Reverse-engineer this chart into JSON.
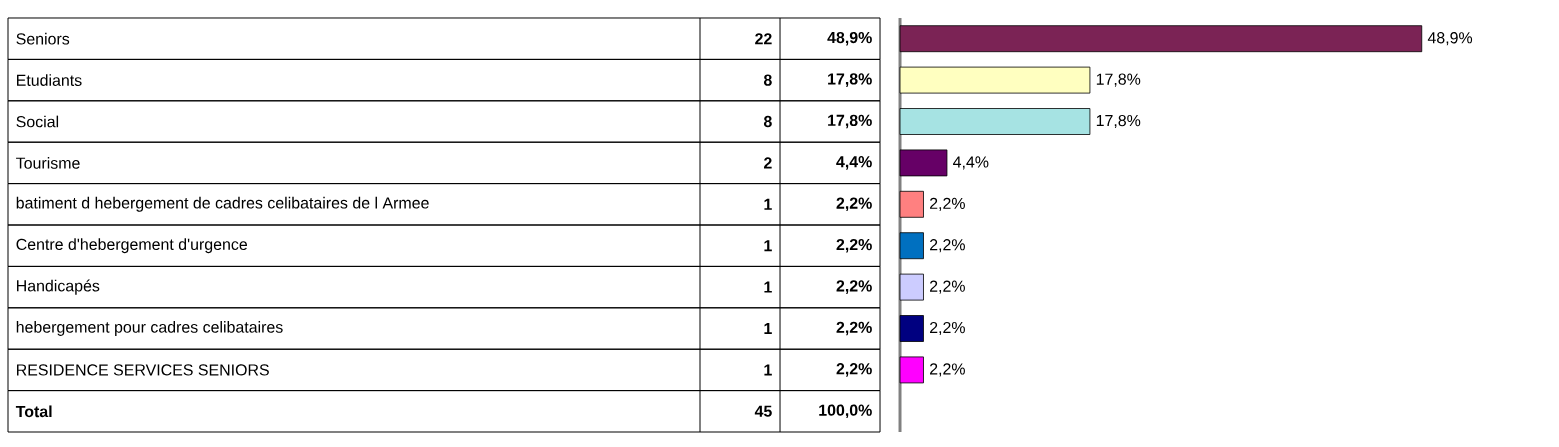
{
  "chart_data": [
    {
      "type": "other",
      "categories": [
        "Seniors",
        "Etudiants",
        "Social",
        "Tourisme",
        "batiment d hebergement de cadres celibataires de l Armee",
        "Centre d'hebergement d'urgence",
        "Handicapés",
        "hebergement pour cadres celibataires",
        "RESIDENCE SERVICES SENIORS"
      ],
      "annotations": [
        "22",
        "48,9%",
        "8",
        "17,8%",
        "8",
        "17,8%",
        "2",
        "4,4%",
        "1",
        "2,2%",
        "1",
        "2,2%",
        "1",
        "2,2%",
        "1",
        "2,2%",
        "1",
        "2,2%",
        "Total",
        "45",
        "100,0%"
      ]
    },
    {
      "type": "bar",
      "orientation": "horizontal",
      "categories": [
        null,
        null,
        null,
        null,
        null,
        null,
        null,
        null,
        null
      ],
      "values": [
        48.9,
        17.8,
        17.8,
        4.4,
        2.2,
        2.2,
        2.2,
        2.2,
        2.2
      ],
      "colors": [
        "#7b2355",
        "#ffffc0",
        "#a6e3e3",
        "#660066",
        "#ff8080",
        "#0070c0",
        "#ccccff",
        "#000080",
        "#ff00ff"
      ],
      "value_labels": [
        "48,9%",
        "17,8%",
        "17,8%",
        "4,4%",
        "2,2%",
        "2,2%",
        "2,2%",
        "2,2%",
        "2,2%"
      ]
    }
  ]
}
